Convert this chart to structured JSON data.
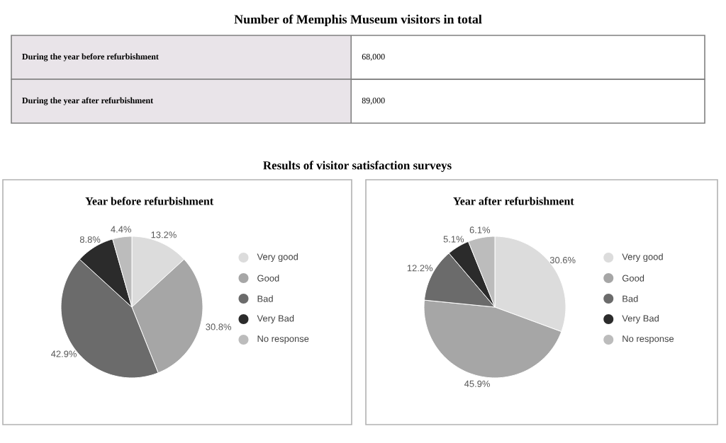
{
  "chart_data": [
    {
      "type": "other",
      "title": "Number of Memphis Museum visitors in total",
      "categories": [
        "During the year before refurbishment",
        "During the year after refurbishment"
      ],
      "value_labels": [
        "68,000",
        "89,000"
      ]
    },
    {
      "type": "pie",
      "title": "Year before refurbishment",
      "annotations": [
        "Results of visitor satisfaction surveys"
      ],
      "categories": [
        "Very good",
        "Good",
        "Bad",
        "Very Bad",
        "No response"
      ],
      "values": [
        13.2,
        30.8,
        42.9,
        8.8,
        4.4
      ],
      "value_labels": [
        "13.2%",
        "30.8%",
        "42.9%",
        "8.8%",
        "4.4%"
      ],
      "colors": [
        "#dcdcdc",
        "#a6a6a6",
        "#6b6b6b",
        "#2b2b2b",
        "#bcbcbc"
      ],
      "legend": "right"
    },
    {
      "type": "pie",
      "title": "Year after refurbishment",
      "categories": [
        "Very good",
        "Good",
        "Bad",
        "Very Bad",
        "No response"
      ],
      "values": [
        30.6,
        45.9,
        12.2,
        5.1,
        6.1
      ],
      "value_labels": [
        "30.6%",
        "45.9%",
        "12.2%",
        "5.1%",
        "6.1%"
      ],
      "colors": [
        "#dcdcdc",
        "#a6a6a6",
        "#6b6b6b",
        "#2b2b2b",
        "#bcbcbc"
      ],
      "legend": "right"
    }
  ]
}
